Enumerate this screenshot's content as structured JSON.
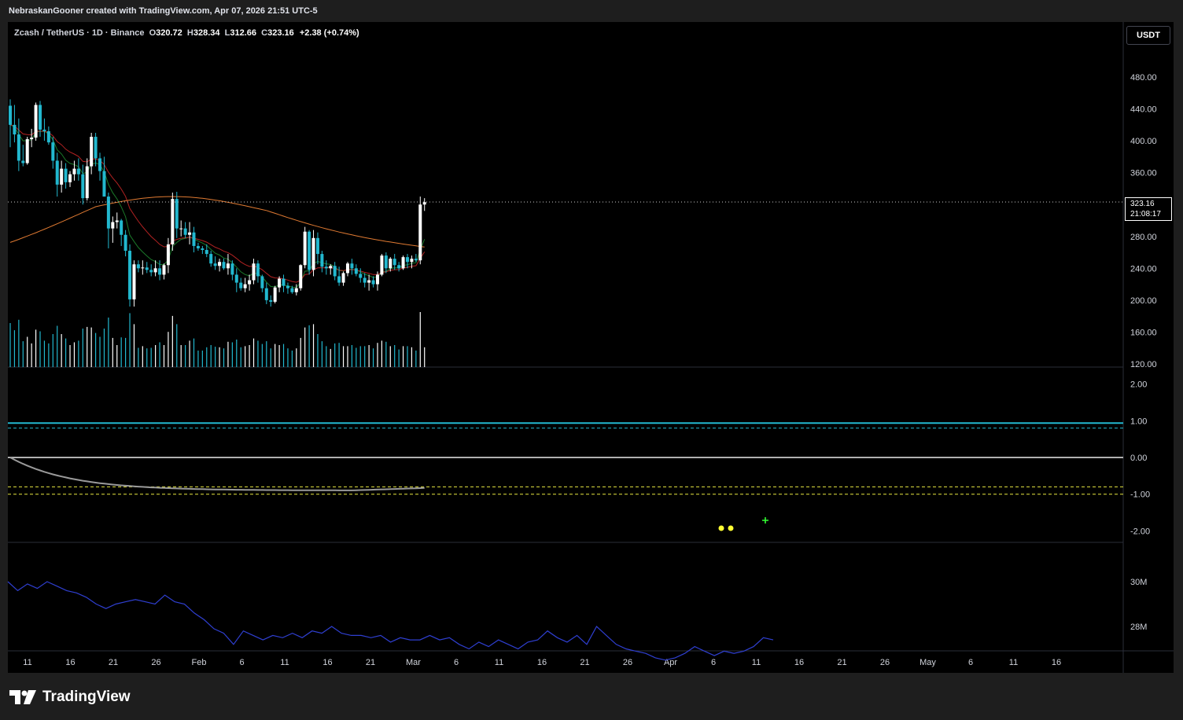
{
  "header": {
    "text": "NebraskanGooner created with TradingView.com, Apr 07, 2026 21:51 UTC-5"
  },
  "symbol": {
    "name": "Zcash / TetherUS · 1D · Binance",
    "open_label": "O",
    "open": "320.72",
    "high_label": "H",
    "high": "328.34",
    "low_label": "L",
    "low": "312.66",
    "close_label": "C",
    "close": "323.16",
    "change": "+2.38 (+0.74%)"
  },
  "currency_button": "USDT",
  "last_price": {
    "price": "323.16",
    "countdown": "21:08:17"
  },
  "price_axis_labels": [
    "480.00",
    "440.00",
    "400.00",
    "360.00",
    "280.00",
    "240.00",
    "200.00",
    "160.00",
    "120.00"
  ],
  "oscillator_axis_labels": [
    "2.00",
    "1.00",
    "0.00",
    "-1.00",
    "-2.00"
  ],
  "volume_axis_labels": [
    "30M",
    "28M"
  ],
  "time_axis_labels": [
    "11",
    "16",
    "21",
    "26",
    "Feb",
    "6",
    "11",
    "16",
    "21",
    "Mar",
    "6",
    "11",
    "16",
    "21",
    "26",
    "Apr",
    "6",
    "11",
    "16",
    "21",
    "26",
    "May",
    "6",
    "11",
    "16"
  ],
  "colors": {
    "candle_up": "#ffffff",
    "candle_down": "#22b8cf",
    "ma_fast": "#1b7a2a",
    "ma_mid": "#b22222",
    "ma_slow": "#e07a32",
    "obv_line": "#2f3fd1",
    "signal_dot": "#ffff33",
    "signal_plus": "#33ff33"
  },
  "brand": "TradingView",
  "chart_data": {
    "type": "candlestick",
    "interval": "1D",
    "x_start": "2026-01-09",
    "x_end": "2026-04-07",
    "ylim": [
      120,
      500
    ],
    "ohlc": [
      [
        444,
        452,
        392,
        420
      ],
      [
        420,
        445,
        398,
        408
      ],
      [
        408,
        428,
        362,
        375
      ],
      [
        375,
        395,
        368,
        372
      ],
      [
        372,
        405,
        370,
        402
      ],
      [
        402,
        415,
        392,
        404
      ],
      [
        404,
        448,
        400,
        445
      ],
      [
        445,
        450,
        405,
        414
      ],
      [
        414,
        428,
        400,
        412
      ],
      [
        412,
        418,
        395,
        398
      ],
      [
        398,
        405,
        365,
        375
      ],
      [
        375,
        385,
        330,
        345
      ],
      [
        345,
        375,
        335,
        365
      ],
      [
        365,
        372,
        340,
        348
      ],
      [
        348,
        362,
        342,
        358
      ],
      [
        358,
        375,
        350,
        365
      ],
      [
        365,
        378,
        350,
        358
      ],
      [
        358,
        370,
        320,
        328
      ],
      [
        328,
        378,
        325,
        368
      ],
      [
        368,
        410,
        358,
        405
      ],
      [
        405,
        410,
        368,
        378
      ],
      [
        378,
        385,
        350,
        362
      ],
      [
        362,
        380,
        330,
        330
      ],
      [
        330,
        335,
        265,
        290
      ],
      [
        290,
        305,
        272,
        298
      ],
      [
        298,
        310,
        290,
        300
      ],
      [
        300,
        302,
        268,
        282
      ],
      [
        282,
        288,
        255,
        262
      ],
      [
        262,
        270,
        192,
        201
      ],
      [
        201,
        250,
        192,
        245
      ],
      [
        245,
        250,
        235,
        240
      ],
      [
        240,
        250,
        232,
        241
      ],
      [
        241,
        248,
        234,
        238
      ],
      [
        238,
        245,
        230,
        235
      ],
      [
        235,
        250,
        230,
        240
      ],
      [
        240,
        250,
        225,
        232
      ],
      [
        232,
        246,
        226,
        244
      ],
      [
        244,
        278,
        234,
        270
      ],
      [
        270,
        335,
        262,
        327
      ],
      [
        327,
        336,
        278,
        290
      ],
      [
        290,
        300,
        280,
        290
      ],
      [
        290,
        298,
        278,
        282
      ],
      [
        282,
        298,
        270,
        285
      ],
      [
        285,
        292,
        260,
        268
      ],
      [
        268,
        272,
        262,
        265
      ],
      [
        265,
        268,
        258,
        263
      ],
      [
        263,
        270,
        254,
        258
      ],
      [
        258,
        262,
        242,
        246
      ],
      [
        246,
        255,
        238,
        243
      ],
      [
        243,
        252,
        236,
        248
      ],
      [
        248,
        252,
        238,
        240
      ],
      [
        240,
        258,
        232,
        246
      ],
      [
        246,
        250,
        225,
        232
      ],
      [
        232,
        240,
        210,
        222
      ],
      [
        222,
        228,
        212,
        215
      ],
      [
        215,
        228,
        210,
        220
      ],
      [
        220,
        232,
        212,
        225
      ],
      [
        225,
        252,
        220,
        246
      ],
      [
        246,
        250,
        222,
        230
      ],
      [
        230,
        232,
        210,
        215
      ],
      [
        215,
        222,
        195,
        200
      ],
      [
        200,
        206,
        192,
        198
      ],
      [
        198,
        218,
        196,
        216
      ],
      [
        216,
        230,
        210,
        227
      ],
      [
        227,
        232,
        210,
        218
      ],
      [
        218,
        222,
        208,
        215
      ],
      [
        215,
        218,
        208,
        210
      ],
      [
        210,
        220,
        206,
        215
      ],
      [
        215,
        245,
        212,
        244
      ],
      [
        244,
        292,
        240,
        286
      ],
      [
        286,
        288,
        232,
        238
      ],
      [
        238,
        288,
        230,
        278
      ],
      [
        278,
        285,
        245,
        258
      ],
      [
        258,
        262,
        235,
        242
      ],
      [
        242,
        250,
        232,
        240
      ],
      [
        240,
        245,
        232,
        243
      ],
      [
        243,
        248,
        225,
        230
      ],
      [
        230,
        242,
        218,
        222
      ],
      [
        222,
        236,
        218,
        234
      ],
      [
        234,
        248,
        230,
        246
      ],
      [
        246,
        252,
        232,
        240
      ],
      [
        240,
        245,
        230,
        233
      ],
      [
        233,
        240,
        222,
        228
      ],
      [
        228,
        234,
        216,
        222
      ],
      [
        222,
        232,
        212,
        225
      ],
      [
        225,
        230,
        216,
        220
      ],
      [
        220,
        236,
        212,
        232
      ],
      [
        232,
        258,
        230,
        256
      ],
      [
        256,
        260,
        234,
        240
      ],
      [
        240,
        254,
        236,
        252
      ],
      [
        252,
        258,
        238,
        244
      ],
      [
        244,
        248,
        236,
        240
      ],
      [
        240,
        256,
        238,
        254
      ],
      [
        254,
        258,
        240,
        248
      ],
      [
        248,
        256,
        240,
        252
      ],
      [
        252,
        258,
        248,
        250
      ],
      [
        250,
        330,
        245,
        320
      ],
      [
        320,
        328,
        312,
        323
      ]
    ],
    "volume_indicator_values_million": [
      30.0,
      29.6,
      29.9,
      29.7,
      30.0,
      29.8,
      29.6,
      29.5,
      29.3,
      29.0,
      28.8,
      29.0,
      29.1,
      29.2,
      29.1,
      29.0,
      29.4,
      29.1,
      29.0,
      28.6,
      28.3,
      27.9,
      27.7,
      27.2,
      27.8,
      27.6,
      27.4,
      27.6,
      27.5,
      27.7,
      27.5,
      27.8,
      27.7,
      28.0,
      27.7,
      27.6,
      27.6,
      27.5,
      27.6,
      27.3,
      27.5,
      27.4,
      27.4,
      27.6,
      27.4,
      27.5,
      27.2,
      27.0,
      27.3,
      27.1,
      27.4,
      27.2,
      27.0,
      27.3,
      27.4,
      27.8,
      27.5,
      27.3,
      27.6,
      27.2,
      28.0,
      27.6,
      27.2,
      27.0,
      26.9,
      26.8,
      26.6,
      26.5,
      26.6,
      26.8,
      27.1,
      26.9,
      26.7,
      26.9,
      26.8,
      26.9,
      27.1,
      27.5,
      27.4
    ],
    "oscillator": {
      "upper_level": 1.0,
      "lower_level": -1.0,
      "zero": 0.0,
      "ylim": [
        -2.2,
        2.4
      ]
    }
  }
}
